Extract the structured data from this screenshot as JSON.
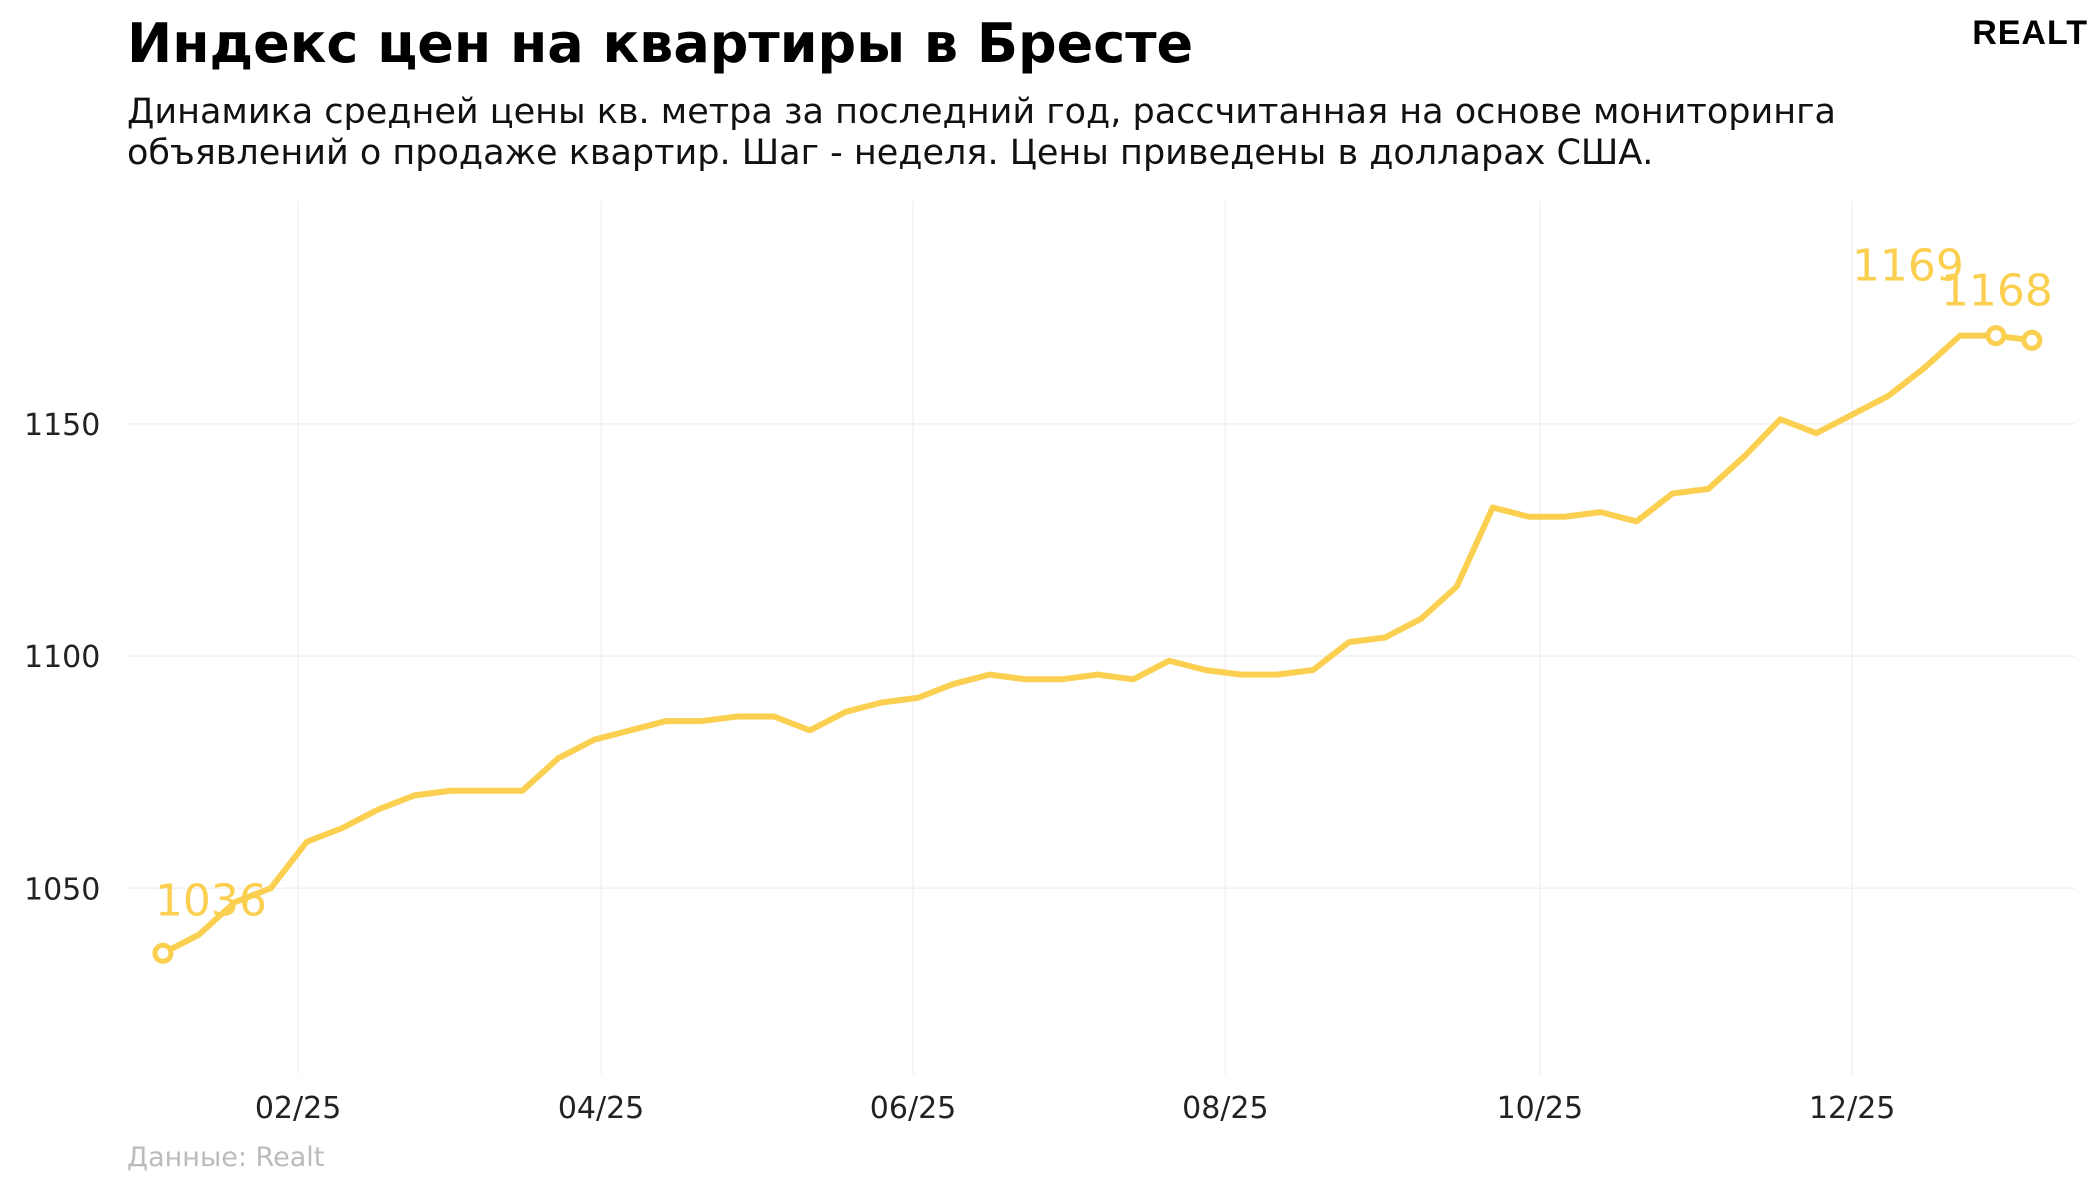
{
  "header": {
    "title": "Индекс цен на квартиры в Бресте",
    "subtitle": "Динамика средней цены кв. метра за последний год, рассчитанная на основе мониторинга объявлений о продаже квартир. Шаг - неделя. Цены приведены в долларах США.",
    "logo": "REALT"
  },
  "chart_data": {
    "type": "line",
    "x": [
      0,
      1,
      2,
      3,
      4,
      5,
      6,
      7,
      8,
      9,
      10,
      11,
      12,
      13,
      14,
      15,
      16,
      17,
      18,
      19,
      20,
      21,
      22,
      23,
      24,
      25,
      26,
      27,
      28,
      29,
      30,
      31,
      32,
      33,
      34,
      35,
      36,
      37,
      38,
      39,
      40,
      41,
      42,
      43,
      44,
      45,
      46,
      47,
      48,
      49,
      50,
      51,
      52
    ],
    "series": [
      {
        "color": "#fbcf50",
        "values": [
          1036,
          1040,
          1047,
          1050,
          1060,
          1063,
          1067,
          1070,
          1071,
          1071,
          1071,
          1078,
          1082,
          1084,
          1086,
          1086,
          1087,
          1087,
          1084,
          1088,
          1090,
          1091,
          1094,
          1096,
          1095,
          1095,
          1096,
          1095,
          1099,
          1097,
          1096,
          1096,
          1097,
          1103,
          1104,
          1108,
          1115,
          1132,
          1130,
          1130,
          1131,
          1129,
          1135,
          1136,
          1143,
          1151,
          1148,
          1152,
          1156,
          1162,
          1169,
          1169,
          1168
        ]
      }
    ],
    "xlim": [
      -1.0,
      53.2
    ],
    "xticks": [
      {
        "value": 3.76,
        "label": "02/25"
      },
      {
        "value": 12.19,
        "label": "04/25"
      },
      {
        "value": 20.87,
        "label": "06/25"
      },
      {
        "value": 29.56,
        "label": "08/25"
      },
      {
        "value": 38.31,
        "label": "10/25"
      },
      {
        "value": 47.0,
        "label": "12/25"
      }
    ],
    "ylim": [
      1010,
      1198
    ],
    "yticks": [
      1050,
      1100,
      1150
    ],
    "grid": true
  },
  "footer": {
    "source": "Данные: Realt"
  }
}
